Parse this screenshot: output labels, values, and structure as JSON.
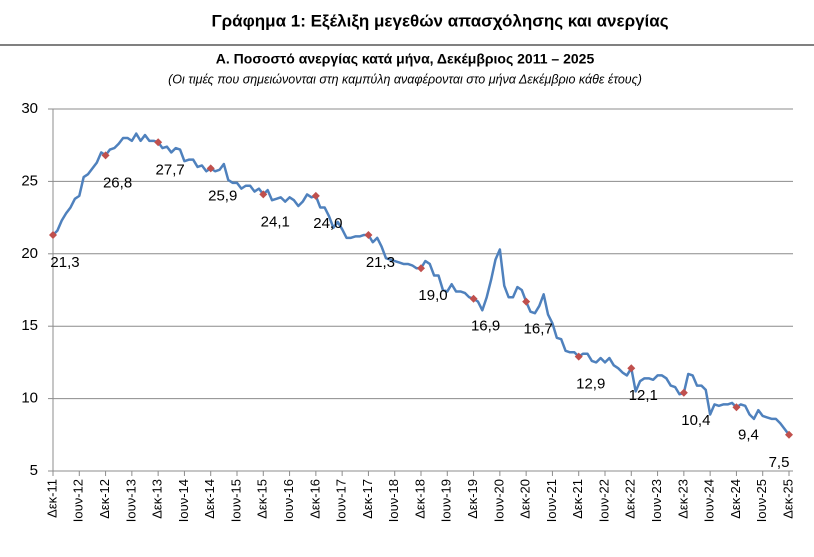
{
  "chart_data": {
    "type": "line",
    "title": "Γράφημα 1: Εξέλιξη μεγεθών απασχόλησης και ανεργίας",
    "subtitle": "Α. Ποσοστό ανεργίας κατά μήνα, Δεκέμβριος 2011 – 2025",
    "note": "(Οι τιμές που σημειώνονται στη καμπύλη αναφέρονται στο μήνα Δεκέμβριο κάθε έτους)",
    "categories": [
      "Δεκ-11",
      null,
      null,
      null,
      null,
      null,
      "Ιουν-12",
      null,
      null,
      null,
      null,
      null,
      "Δεκ-12",
      null,
      null,
      null,
      null,
      null,
      "Ιουν-13",
      null,
      null,
      null,
      null,
      null,
      "Δεκ-13",
      null,
      null,
      null,
      null,
      null,
      "Ιουν-14",
      null,
      null,
      null,
      null,
      null,
      "Δεκ-14",
      null,
      null,
      null,
      null,
      null,
      "Ιουν-15",
      null,
      null,
      null,
      null,
      null,
      "Δεκ-15",
      null,
      null,
      null,
      null,
      null,
      "Ιουν-16",
      null,
      null,
      null,
      null,
      null,
      "Δεκ-16",
      null,
      null,
      null,
      null,
      null,
      "Ιουν-17",
      null,
      null,
      null,
      null,
      null,
      "Δεκ-17",
      null,
      null,
      null,
      null,
      null,
      "Ιουν-18",
      null,
      null,
      null,
      null,
      null,
      "Δεκ-18",
      null,
      null,
      null,
      null,
      null,
      "Ιουν-19",
      null,
      null,
      null,
      null,
      null,
      "Δεκ-19",
      null,
      null,
      null,
      null,
      null,
      "Ιουν-20",
      null,
      null,
      null,
      null,
      null,
      "Δεκ-20",
      null,
      null,
      null,
      null,
      null,
      "Ιουν-21",
      null,
      null,
      null,
      null,
      null,
      "Δεκ-21",
      null,
      null,
      null,
      null,
      null,
      "Ιουν-22",
      null,
      null,
      null,
      null,
      null,
      "Δεκ-22",
      null,
      null,
      null,
      null,
      null,
      "Ιουν-23",
      null,
      null,
      null,
      null,
      null,
      "Δεκ-23",
      null,
      null,
      null,
      null,
      null,
      "Ιουν-24",
      null,
      null,
      null,
      null,
      null,
      "Δεκ-24",
      null,
      null,
      null,
      null,
      null,
      "Ιουν-25",
      null,
      null,
      null,
      null,
      null,
      "Δεκ-25"
    ],
    "series": [
      {
        "color": "#4f81bd",
        "marker_color": "#c0504d",
        "values": [
          21.3,
          21.6,
          22.3,
          22.8,
          23.2,
          23.8,
          24.0,
          25.3,
          25.5,
          25.9,
          26.3,
          27.0,
          26.8,
          27.2,
          27.3,
          27.6,
          28.0,
          28.0,
          27.8,
          28.3,
          27.8,
          28.2,
          27.8,
          27.8,
          27.7,
          27.3,
          27.4,
          27.0,
          27.3,
          27.2,
          26.4,
          26.5,
          26.5,
          26.0,
          26.1,
          25.7,
          25.9,
          25.7,
          25.8,
          26.2,
          25.1,
          24.9,
          24.9,
          24.5,
          24.7,
          24.7,
          24.3,
          24.5,
          24.1,
          24.4,
          23.7,
          23.8,
          23.9,
          23.6,
          23.9,
          23.7,
          23.3,
          23.6,
          24.1,
          23.9,
          24.0,
          23.2,
          23.2,
          22.6,
          21.8,
          22.2,
          21.7,
          21.1,
          21.1,
          21.2,
          21.2,
          21.3,
          21.3,
          20.8,
          21.1,
          20.5,
          19.7,
          19.6,
          19.5,
          19.4,
          19.3,
          19.3,
          19.2,
          19.0,
          19.0,
          19.5,
          19.3,
          18.5,
          18.5,
          17.5,
          17.4,
          17.9,
          17.4,
          17.4,
          17.3,
          17.0,
          16.9,
          16.7,
          16.1,
          17.0,
          18.2,
          19.6,
          20.3,
          17.8,
          17.0,
          17.0,
          17.7,
          17.5,
          16.7,
          16.0,
          15.9,
          16.4,
          17.2,
          15.8,
          15.2,
          14.2,
          14.1,
          13.3,
          13.2,
          13.2,
          12.9,
          13.1,
          13.1,
          12.6,
          12.5,
          12.8,
          12.5,
          12.8,
          12.3,
          12.1,
          11.8,
          11.6,
          12.1,
          10.5,
          11.2,
          11.4,
          11.4,
          11.3,
          11.6,
          11.6,
          11.4,
          10.9,
          10.8,
          10.3,
          10.4,
          11.7,
          11.6,
          10.9,
          10.9,
          10.6,
          8.9,
          9.6,
          9.5,
          9.6,
          9.6,
          9.7,
          9.4,
          9.6,
          9.5,
          8.9,
          8.6,
          9.2,
          8.8,
          8.7,
          8.6,
          8.6,
          8.3,
          7.9,
          7.5
        ],
        "value_labels": [
          "21,3",
          null,
          null,
          null,
          null,
          null,
          null,
          null,
          null,
          null,
          null,
          null,
          "26,8",
          null,
          null,
          null,
          null,
          null,
          null,
          null,
          null,
          null,
          null,
          null,
          "27,7",
          null,
          null,
          null,
          null,
          null,
          null,
          null,
          null,
          null,
          null,
          null,
          "25,9",
          null,
          null,
          null,
          null,
          null,
          null,
          null,
          null,
          null,
          null,
          null,
          "24,1",
          null,
          null,
          null,
          null,
          null,
          null,
          null,
          null,
          null,
          null,
          null,
          "24,0",
          null,
          null,
          null,
          null,
          null,
          null,
          null,
          null,
          null,
          null,
          null,
          "21,3",
          null,
          null,
          null,
          null,
          null,
          null,
          null,
          null,
          null,
          null,
          null,
          "19,0",
          null,
          null,
          null,
          null,
          null,
          null,
          null,
          null,
          null,
          null,
          null,
          "16,9",
          null,
          null,
          null,
          null,
          null,
          null,
          null,
          null,
          null,
          null,
          null,
          "16,7",
          null,
          null,
          null,
          null,
          null,
          null,
          null,
          null,
          null,
          null,
          null,
          "12,9",
          null,
          null,
          null,
          null,
          null,
          null,
          null,
          null,
          null,
          null,
          null,
          "12,1",
          null,
          null,
          null,
          null,
          null,
          null,
          null,
          null,
          null,
          null,
          null,
          "10,4",
          null,
          null,
          null,
          null,
          null,
          null,
          null,
          null,
          null,
          null,
          null,
          "9,4",
          null,
          null,
          null,
          null,
          null,
          null,
          null,
          null,
          null,
          null,
          null,
          "7,5"
        ]
      }
    ],
    "ylim": [
      5,
      30
    ],
    "yticks": [
      5,
      10,
      15,
      20,
      25,
      30
    ],
    "grid": true
  }
}
